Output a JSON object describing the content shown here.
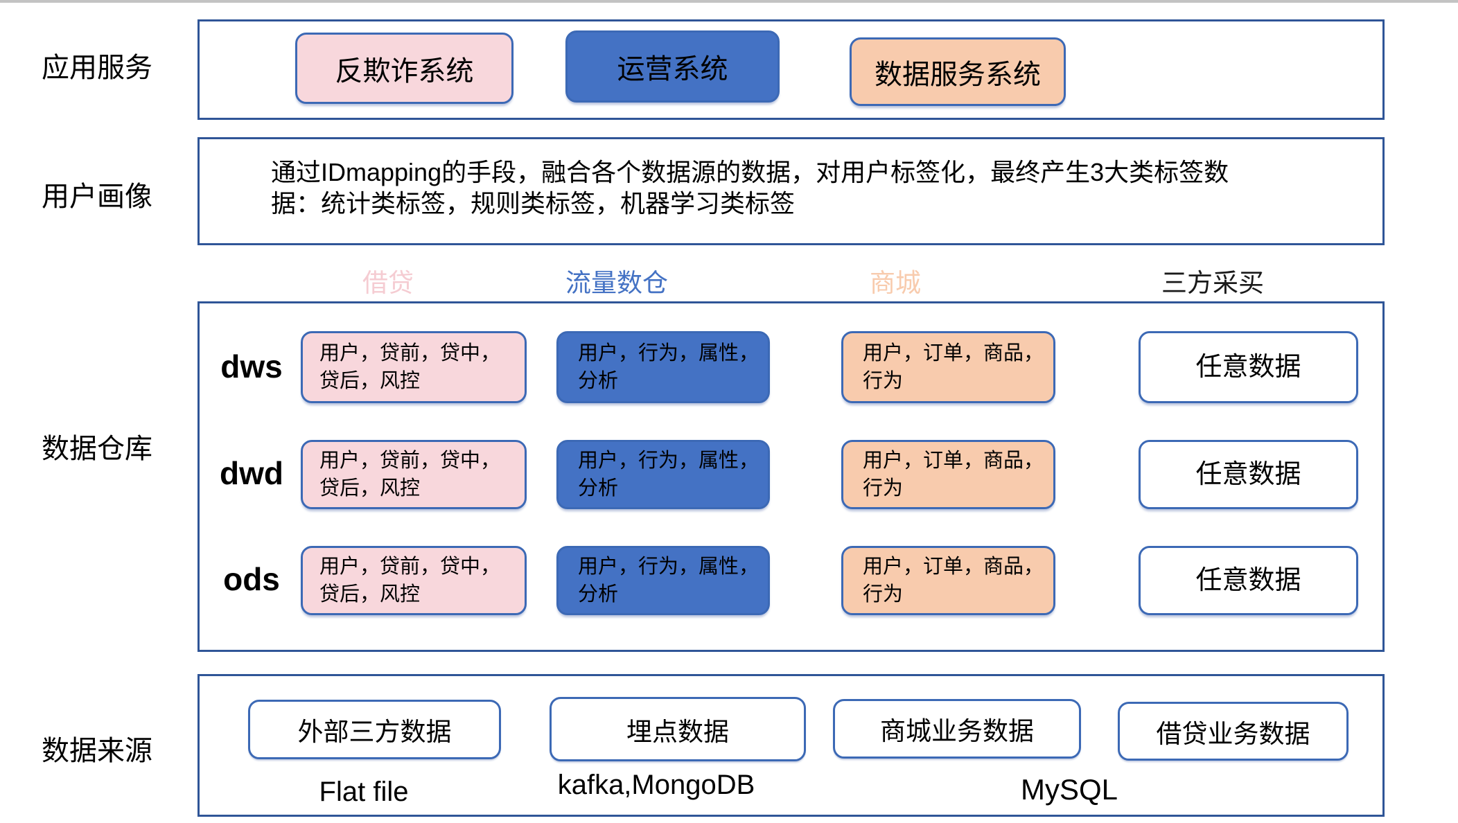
{
  "colors": {
    "pink_fill": "#F8D7DC",
    "blue_fill": "#4472C4",
    "orange_fill": "#F8CBAD",
    "outer_border": "#2F5597",
    "inner_border": "#3C69B5",
    "header_loan_color": "#F5CCD2",
    "header_traffic_color": "#4472C4",
    "header_mall_color": "#F8CBAD",
    "header_thirdparty_color": "#1A1A1A"
  },
  "sections": {
    "app_services": {
      "label": "应用服务",
      "systems": [
        {
          "name": "反欺诈系统"
        },
        {
          "name": "运营系统"
        },
        {
          "name": "数据服务系统"
        }
      ]
    },
    "user_profile": {
      "label": "用户画像",
      "description": "通过IDmapping的手段，融合各个数据源的数据，对用户标签化，最终产生3大类标签数\n据：统计类标签，规则类标签，机器学习类标签"
    },
    "column_headers": [
      {
        "label": "借贷"
      },
      {
        "label": "流量数仓"
      },
      {
        "label": "商城"
      },
      {
        "label": "三方采买"
      }
    ],
    "warehouse": {
      "label": "数据仓库",
      "rows": [
        {
          "layer": "dws",
          "cells": [
            {
              "text": "用户，贷前，贷中，\n贷后，风控"
            },
            {
              "text": "用户，行为，属性，\n分析"
            },
            {
              "text": "用户，订单，商品，\n行为"
            },
            {
              "text": "任意数据"
            }
          ]
        },
        {
          "layer": "dwd",
          "cells": [
            {
              "text": "用户，贷前，贷中，\n贷后，风控"
            },
            {
              "text": "用户，行为，属性，\n分析"
            },
            {
              "text": "用户，订单，商品，\n行为"
            },
            {
              "text": "任意数据"
            }
          ]
        },
        {
          "layer": "ods",
          "cells": [
            {
              "text": "用户，贷前，贷中，\n贷后，风控"
            },
            {
              "text": "用户，行为，属性，\n分析"
            },
            {
              "text": "用户，订单，商品，\n行为"
            },
            {
              "text": "任意数据"
            }
          ]
        }
      ]
    },
    "sources": {
      "label": "数据来源",
      "boxes": [
        {
          "name": "外部三方数据"
        },
        {
          "name": "埋点数据"
        },
        {
          "name": "商城业务数据"
        },
        {
          "name": "借贷业务数据"
        }
      ],
      "tech_labels": [
        {
          "name": "Flat file"
        },
        {
          "name": "kafka,MongoDB"
        },
        {
          "name": "MySQL"
        }
      ]
    }
  }
}
